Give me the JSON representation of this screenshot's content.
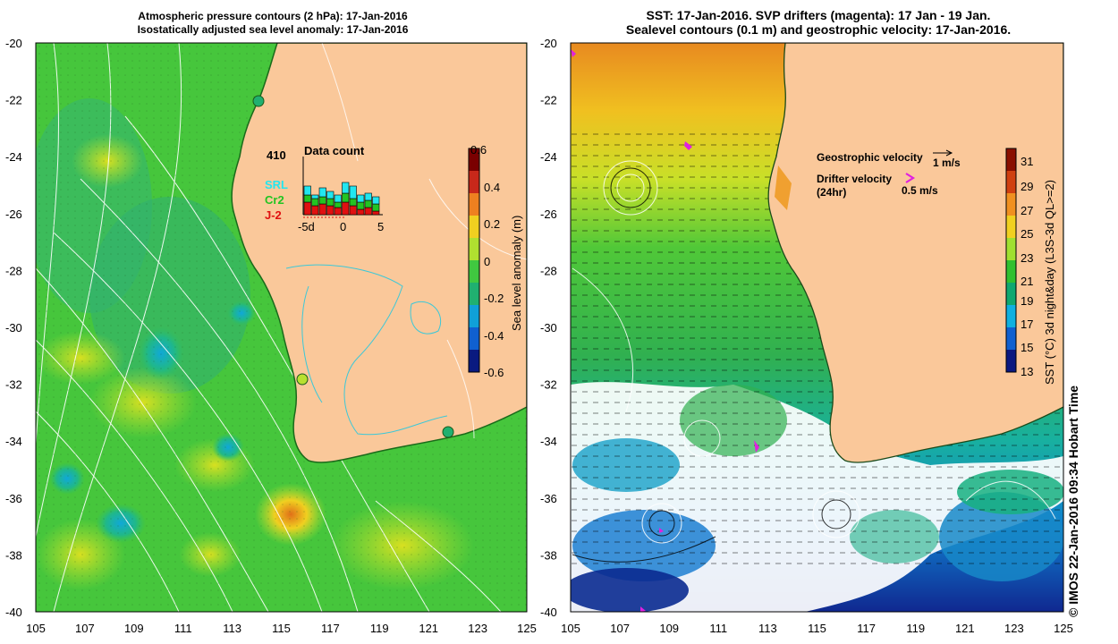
{
  "left_panel": {
    "title_line1": "Atmospheric pressure contours (2 hPa): 17-Jan-2016",
    "title_line2": "Isostatically adjusted sea level anomaly: 17-Jan-2016",
    "data_count_total": "410",
    "data_count_label": "Data count",
    "legend": [
      {
        "label": "SRL",
        "color": "#22e6f0"
      },
      {
        "label": "Cr2",
        "color": "#22c422"
      },
      {
        "label": "J-2",
        "color": "#e01010"
      }
    ],
    "histogram_ticks": [
      "-5d",
      "0",
      "5"
    ],
    "colorbar": {
      "label": "Sea level anomaly (m)",
      "ticks": [
        "0.6",
        "0.4",
        "0.2",
        "0",
        "-0.2",
        "-0.4",
        "-0.6"
      ],
      "colors": [
        "#7a0000",
        "#c8281a",
        "#ee8020",
        "#f0d020",
        "#b0e030",
        "#40c840",
        "#20b070",
        "#10a0d8",
        "#1060d0",
        "#0a1a80"
      ]
    }
  },
  "right_panel": {
    "title_line1": "SST: 17-Jan-2016. SVP drifters (magenta): 17 Jan - 19 Jan.",
    "title_line2": "Sealevel contours (0.1 m) and geostrophic velocity: 17-Jan-2016.",
    "geo_label": "Geostrophic velocity",
    "geo_scale": "1 m/s",
    "drifter_label": "Drifter velocity",
    "drifter_sub": "(24hr)",
    "drifter_scale": "0.5 m/s",
    "colorbar": {
      "label": "SST (°C) 3d night&day (L3S-3d QL>=2)",
      "ticks": [
        "31",
        "29",
        "27",
        "25",
        "23",
        "21",
        "19",
        "17",
        "15",
        "13"
      ],
      "colors": [
        "#8a1000",
        "#d04010",
        "#f09020",
        "#f0d020",
        "#a0e030",
        "#30c030",
        "#10a870",
        "#10b0e0",
        "#1060d0",
        "#0a1880"
      ]
    }
  },
  "axes": {
    "y_ticks": [
      "-20",
      "-22",
      "-24",
      "-26",
      "-28",
      "-30",
      "-32",
      "-34",
      "-36",
      "-38",
      "-40"
    ],
    "x_ticks": [
      "105",
      "107",
      "109",
      "111",
      "113",
      "115",
      "117",
      "119",
      "121",
      "123",
      "125"
    ]
  },
  "credit": "© IMOS 22-Jan-2016 09:34 Hobart Time"
}
